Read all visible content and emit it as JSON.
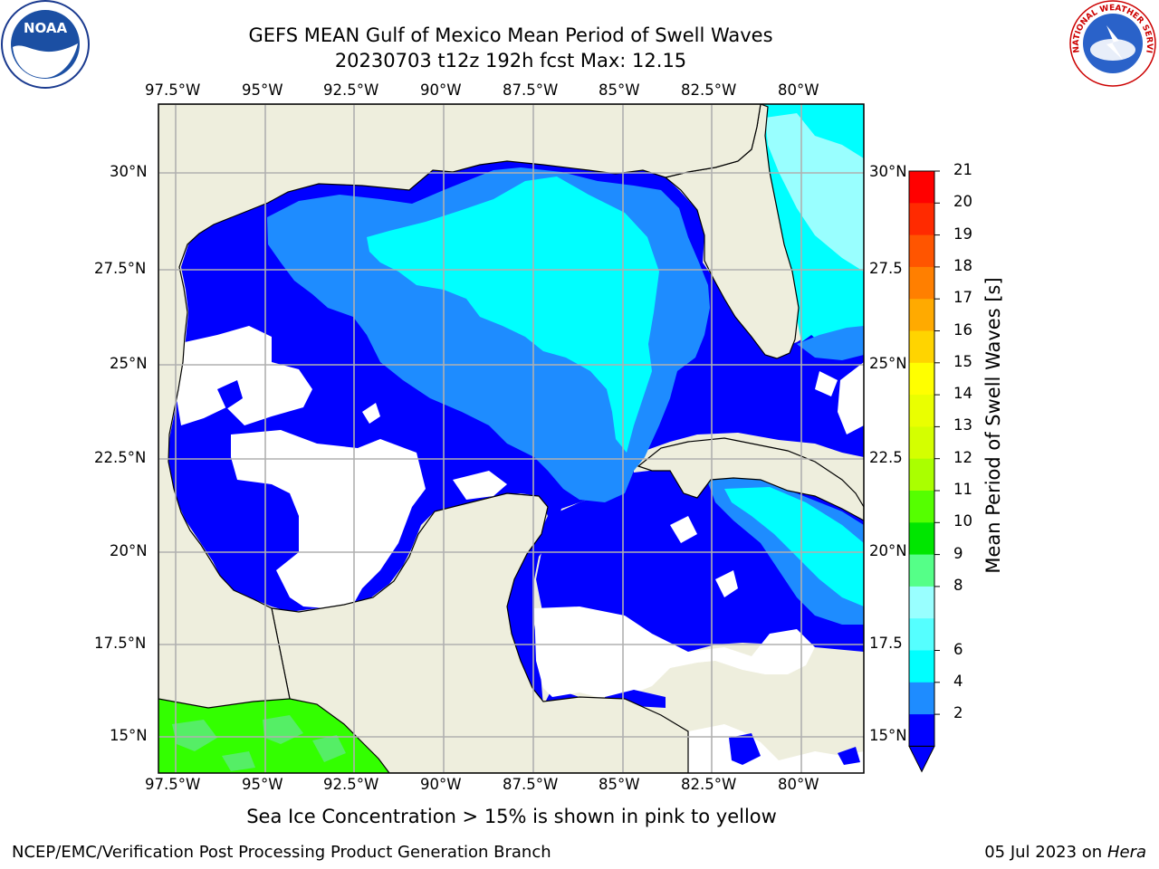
{
  "header": {
    "title_line1": "GEFS MEAN Gulf of Mexico Mean Period of Swell Waves",
    "title_line2": "20230703 t12z 192h fcst   Max: 12.15"
  },
  "logos": {
    "left": {
      "name": "noaa-logo",
      "text": "NOAA"
    },
    "right": {
      "name": "nws-logo",
      "text": "NATIONAL WEATHER SERVICE"
    }
  },
  "map": {
    "lon_labels": [
      "97.5°W",
      "95°W",
      "92.5°W",
      "90°W",
      "87.5°W",
      "85°W",
      "82.5°W",
      "80°W"
    ],
    "lat_labels_left": [
      "30°N",
      "27.5°N",
      "25°N",
      "22.5°N",
      "20°N",
      "17.5°N",
      "15°N"
    ],
    "lat_labels_right": [
      "30°N",
      "27.5",
      "25°N",
      "22.5",
      "20°N",
      "17.5",
      "15°N"
    ],
    "colors": {
      "land": "#eeeedd",
      "ocean_zero": "#ffffff",
      "level_2_4": "#0000ff",
      "level_4_6": "#1e8cff",
      "level_6_8": "#00ffff",
      "level_8_9": "#66ffff",
      "level_9_10": "#99ffff",
      "level_10_11": "#55ee66",
      "level_11_12": "#33ff00",
      "grid": "#b0b0b0",
      "coast": "#000000"
    }
  },
  "colorbar": {
    "title": "Mean Period of Swell Waves [s]",
    "labels": [
      "21",
      "20",
      "19",
      "18",
      "17",
      "16",
      "15",
      "14",
      "13",
      "12",
      "11",
      "10",
      "9",
      "8",
      "6",
      "4",
      "2"
    ],
    "colors": [
      "#ff0000",
      "#ff2a00",
      "#ff5500",
      "#ff7f00",
      "#ffaa00",
      "#ffd400",
      "#ffff00",
      "#eaff00",
      "#d4ff00",
      "#aaff00",
      "#55ff00",
      "#00e600",
      "#55ff88",
      "#99ffff",
      "#55ffff",
      "#00ffff",
      "#1e8cff",
      "#0000ff"
    ]
  },
  "caption": "Sea Ice Concentration > 15% is shown in pink to yellow",
  "footer": {
    "left": "NCEP/EMC/Verification Post Processing Product Generation Branch",
    "date": "05 Jul 2023 on ",
    "host": "Hera"
  }
}
